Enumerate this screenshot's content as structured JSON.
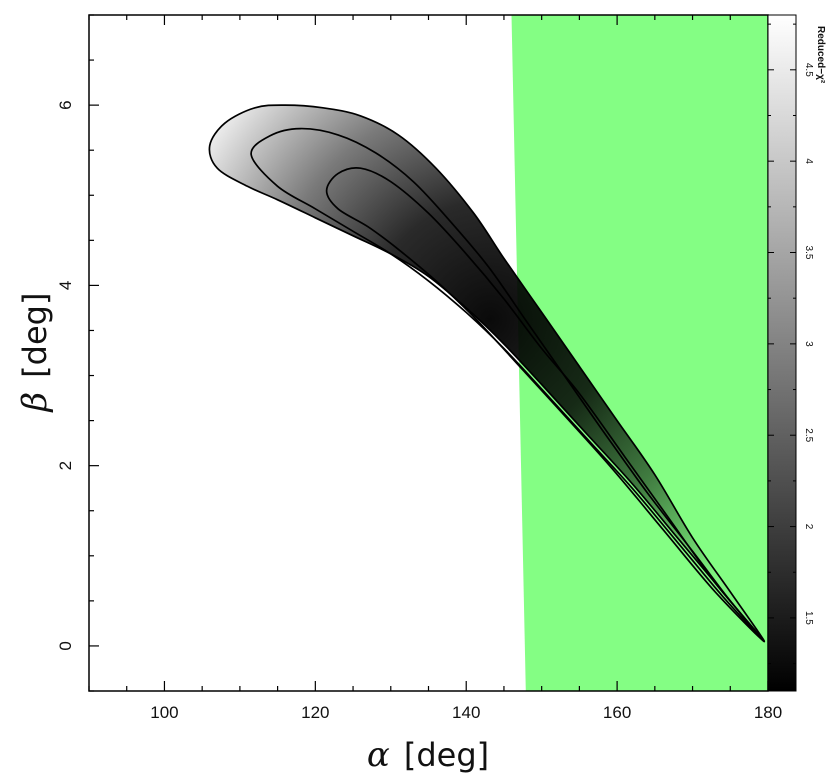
{
  "chart_data": {
    "type": "heatmap",
    "title": "",
    "x_symbol": "α",
    "x_unit": "[deg]",
    "y_symbol": "β",
    "y_unit": "[deg]",
    "xlim": [
      90,
      180
    ],
    "ylim": [
      -0.5,
      7
    ],
    "x_ticks": [
      100,
      120,
      140,
      160,
      180
    ],
    "y_ticks": [
      0,
      2,
      4,
      6
    ],
    "colorbar": {
      "label": "Reduced−χ²",
      "range": [
        1.1,
        4.8
      ],
      "ticks": [
        1.5,
        2,
        2.5,
        3,
        3.5,
        4,
        4.5
      ],
      "colormap": "gray (black = low, white = high)"
    },
    "minimum": {
      "alpha": 180,
      "beta": 0.05
    },
    "contours": [
      {
        "name": "outer",
        "points": [
          [
            106,
            5.55
          ],
          [
            108,
            5.8
          ],
          [
            112,
            5.97
          ],
          [
            116,
            6.0
          ],
          [
            121,
            5.97
          ],
          [
            126,
            5.88
          ],
          [
            131,
            5.67
          ],
          [
            136,
            5.3
          ],
          [
            141,
            4.8
          ],
          [
            145,
            4.3
          ],
          [
            150,
            3.7
          ],
          [
            155,
            3.1
          ],
          [
            160,
            2.5
          ],
          [
            165,
            1.9
          ],
          [
            170,
            1.2
          ],
          [
            175,
            0.6
          ],
          [
            179.5,
            0.05
          ],
          [
            174,
            0.6
          ],
          [
            168,
            1.2
          ],
          [
            162,
            1.8
          ],
          [
            156,
            2.35
          ],
          [
            150,
            2.9
          ],
          [
            145,
            3.35
          ],
          [
            140,
            3.75
          ],
          [
            135,
            4.1
          ],
          [
            130,
            4.35
          ],
          [
            125,
            4.55
          ],
          [
            120,
            4.75
          ],
          [
            115,
            4.95
          ],
          [
            111,
            5.1
          ],
          [
            107,
            5.3
          ]
        ]
      },
      {
        "name": "middle",
        "points": [
          [
            111.5,
            5.45
          ],
          [
            114,
            5.66
          ],
          [
            118,
            5.74
          ],
          [
            123,
            5.67
          ],
          [
            128,
            5.47
          ],
          [
            133,
            5.15
          ],
          [
            138,
            4.7
          ],
          [
            143,
            4.2
          ],
          [
            148,
            3.6
          ],
          [
            153,
            3.0
          ],
          [
            158,
            2.4
          ],
          [
            164,
            1.7
          ],
          [
            170,
            1.05
          ],
          [
            175,
            0.5
          ],
          [
            179.5,
            0.05
          ],
          [
            174,
            0.55
          ],
          [
            168,
            1.15
          ],
          [
            162,
            1.75
          ],
          [
            156,
            2.3
          ],
          [
            150,
            2.85
          ],
          [
            145,
            3.3
          ],
          [
            140,
            3.7
          ],
          [
            135,
            4.05
          ],
          [
            130,
            4.35
          ],
          [
            125,
            4.6
          ],
          [
            120,
            4.85
          ],
          [
            115,
            5.1
          ]
        ]
      },
      {
        "name": "inner",
        "points": [
          [
            121.5,
            5.05
          ],
          [
            123,
            5.24
          ],
          [
            126,
            5.3
          ],
          [
            130,
            5.15
          ],
          [
            135,
            4.8
          ],
          [
            140,
            4.35
          ],
          [
            145,
            3.85
          ],
          [
            150,
            3.3
          ],
          [
            155,
            2.8
          ],
          [
            161,
            2.1
          ],
          [
            167,
            1.4
          ],
          [
            173,
            0.7
          ],
          [
            179.5,
            0.05
          ],
          [
            173,
            0.6
          ],
          [
            166,
            1.3
          ],
          [
            159,
            2.0
          ],
          [
            152,
            2.65
          ],
          [
            146,
            3.2
          ],
          [
            141,
            3.65
          ],
          [
            136,
            4.05
          ],
          [
            131,
            4.4
          ],
          [
            127,
            4.65
          ],
          [
            123,
            4.85
          ]
        ]
      }
    ],
    "excluded_region": {
      "color": "#80fe80",
      "opacity": 0.97,
      "polygon": [
        [
          146,
          7
        ],
        [
          180,
          7
        ],
        [
          180,
          -0.5
        ],
        [
          147.9,
          -0.5
        ]
      ]
    }
  }
}
